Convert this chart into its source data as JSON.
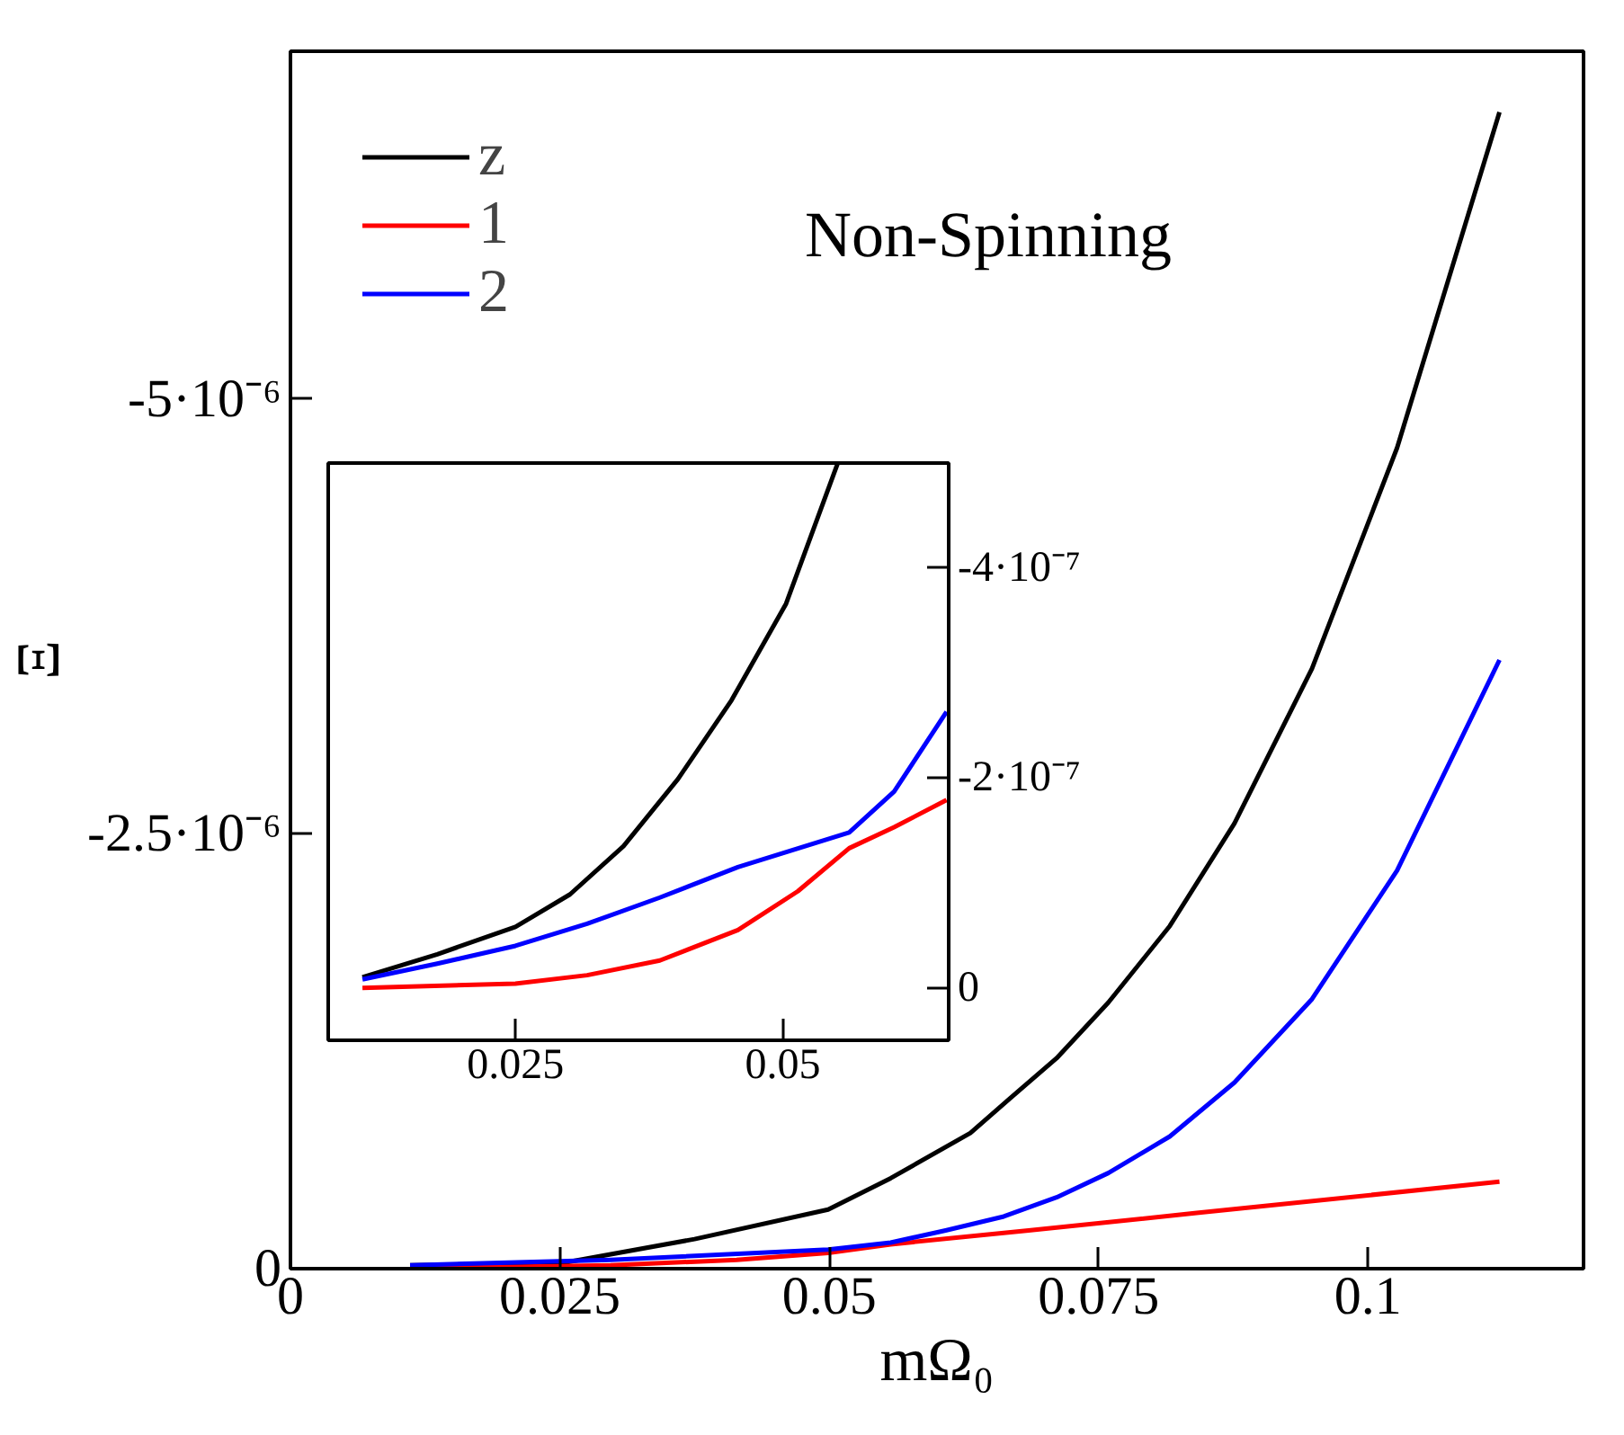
{
  "chart_data": [
    {
      "type": "line",
      "xlabel": "mΩ₀",
      "ylabel": "Ξ",
      "xlim": [
        0,
        0.12
      ],
      "ylim": [
        0,
        -7e-06
      ],
      "xticks": [
        0,
        0.025,
        0.05,
        0.075,
        0.1
      ],
      "yticks": [
        0,
        {
          "value": -2.5e-06,
          "label": "-2.5·10⁻⁶"
        },
        {
          "value": -5e-06,
          "label": "-5·10⁻⁶"
        }
      ],
      "grid": false,
      "legend": "top left",
      "annotations": [
        "Non-Spinning"
      ],
      "series": [
        {
          "name": "z",
          "color": "#000000",
          "x": [
            0.0111,
            0.025,
            0.0375,
            0.0499,
            0.0557,
            0.0631,
            0.0668,
            0.0711,
            0.0759,
            0.0816,
            0.0876,
            0.0948,
            0.1027,
            0.1122
          ],
          "values": [
            -2e-08,
            -3e-08,
            -1.7e-07,
            -3.4e-07,
            -5.2e-07,
            -7.8e-07,
            -9.8e-07,
            -1.21e-06,
            -1.53e-06,
            -1.97e-06,
            -2.56e-06,
            -3.45e-06,
            -4.72e-06,
            -6.65e-06
          ]
        },
        {
          "name": "1",
          "color": "#ff0000",
          "x": [
            0.0111,
            0.0297,
            0.0414,
            0.0499,
            0.0557,
            0.0685,
            0.0841,
            0.1122
          ],
          "values": [
            0,
            -2e-08,
            -5e-08,
            -9e-08,
            -1.4e-07,
            -2.2e-07,
            -3.2e-07,
            -5e-07
          ]
        },
        {
          "name": "2",
          "color": "#0000ff",
          "x": [
            0.0111,
            0.0297,
            0.0499,
            0.0557,
            0.0608,
            0.0662,
            0.0711,
            0.0759,
            0.0816,
            0.0876,
            0.0948,
            0.1027,
            0.1122
          ],
          "values": [
            -2e-08,
            -5e-08,
            -1.1e-07,
            -1.5e-07,
            -2.2e-07,
            -3e-07,
            -4.1e-07,
            -5.5e-07,
            -7.6e-07,
            -1.07e-06,
            -1.55e-06,
            -2.29e-06,
            -3.5e-06
          ]
        }
      ]
    },
    {
      "type": "line",
      "xlim": [
        0.0075,
        0.0655
      ],
      "ylim": [
        5e-08,
        -5e-07
      ],
      "xticks": [
        0.025,
        0.05
      ],
      "yticks": [
        0,
        {
          "value": -2e-07,
          "label": "-2·10⁻⁷"
        },
        {
          "value": -4e-07,
          "label": "-4·10⁻⁷"
        }
      ],
      "grid": false,
      "series": [
        {
          "color": "#000000",
          "x": [
            0.0107,
            0.0177,
            0.025,
            0.0301,
            0.0351,
            0.0402,
            0.0452,
            0.0503,
            0.0551
          ],
          "values": [
            -1e-08,
            -3.2e-08,
            -5.8e-08,
            -8.9e-08,
            -1.35e-07,
            -1.99e-07,
            -2.74e-07,
            -3.66e-07,
            -4.99e-07
          ]
        },
        {
          "color": "#ff0000",
          "x": [
            0.0107,
            0.025,
            0.0317,
            0.0385,
            0.0458,
            0.0514,
            0.0562,
            0.0604,
            0.0653
          ],
          "values": [
            0,
            -4e-09,
            -1.2e-08,
            -2.6e-08,
            -5.5e-08,
            -9.2e-08,
            -1.33e-07,
            -1.53e-07,
            -1.79e-07
          ]
        },
        {
          "color": "#0000ff",
          "x": [
            0.0107,
            0.0177,
            0.025,
            0.0317,
            0.0385,
            0.0458,
            0.0562,
            0.0604,
            0.0653
          ],
          "values": [
            -8e-09,
            -2.3e-08,
            -4e-08,
            -6.1e-08,
            -8.6e-08,
            -1.15e-07,
            -1.48e-07,
            -1.87e-07,
            -2.63e-07
          ]
        }
      ]
    }
  ]
}
